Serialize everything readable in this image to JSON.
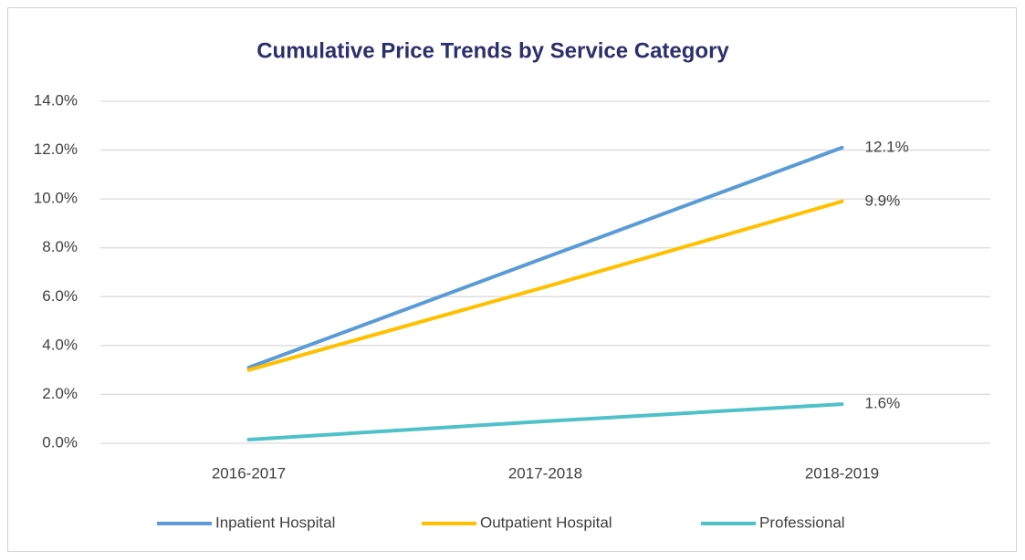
{
  "chart_data": {
    "type": "line",
    "title": "Cumulative Price Trends by Service Category",
    "categories": [
      "2016-2017",
      "2017-2018",
      "2018-2019"
    ],
    "series": [
      {
        "name": "Inpatient Hospital",
        "color": "#5b9bd5",
        "values": [
          3.1,
          7.6,
          12.1
        ],
        "value_labels": [
          null,
          null,
          "12.1%"
        ]
      },
      {
        "name": "Outpatient Hospital",
        "color": "#ffc000",
        "values": [
          3.0,
          6.4,
          9.9
        ],
        "value_labels": [
          null,
          null,
          "9.9%"
        ]
      },
      {
        "name": "Professional",
        "color": "#4fc1c9",
        "values": [
          0.15,
          0.9,
          1.6
        ],
        "value_labels": [
          null,
          null,
          "1.6%"
        ]
      }
    ],
    "ylim": [
      0,
      14
    ],
    "yticks": [
      {
        "value": 0,
        "label": "0.0%"
      },
      {
        "value": 2,
        "label": "2.0%"
      },
      {
        "value": 4,
        "label": "4.0%"
      },
      {
        "value": 6,
        "label": "6.0%"
      },
      {
        "value": 8,
        "label": "8.0%"
      },
      {
        "value": 10,
        "label": "10.0%"
      },
      {
        "value": 12,
        "label": "12.0%"
      },
      {
        "value": 14,
        "label": "14.0%"
      }
    ],
    "grid": true,
    "legend": "bottom"
  }
}
